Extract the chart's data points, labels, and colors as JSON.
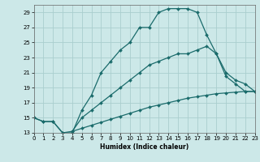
{
  "xlabel": "Humidex (Indice chaleur)",
  "bg_color": "#cce8e8",
  "grid_color": "#aacece",
  "line_color": "#1a6b6b",
  "line1_x": [
    0,
    1,
    2,
    3,
    4,
    5,
    6,
    7,
    8,
    9,
    10,
    11,
    12,
    13,
    14,
    15,
    16,
    17,
    18,
    19,
    20,
    21,
    22,
    23
  ],
  "line1_y": [
    15,
    14.5,
    14.5,
    13,
    13,
    16,
    18,
    21,
    22.5,
    24,
    25,
    27,
    27,
    29,
    29.5,
    29.5,
    29.5,
    29,
    26,
    23.5,
    20.5,
    19.5,
    18.5,
    18.5
  ],
  "line2_x": [
    0,
    1,
    2,
    3,
    4,
    5,
    6,
    7,
    8,
    9,
    10,
    11,
    12,
    13,
    14,
    15,
    16,
    17,
    18,
    19,
    20,
    21,
    22,
    23
  ],
  "line2_y": [
    15,
    14.5,
    14.5,
    13,
    13.2,
    15.0,
    16.0,
    17.0,
    18.0,
    19.0,
    20.0,
    21.0,
    22.0,
    22.5,
    23.0,
    23.5,
    23.5,
    24.0,
    24.5,
    23.5,
    21.0,
    20.0,
    19.5,
    18.5
  ],
  "line3_x": [
    4,
    5,
    6,
    7,
    8,
    9,
    10,
    11,
    12,
    13,
    14,
    15,
    16,
    17,
    18,
    19,
    20,
    21,
    22,
    23
  ],
  "line3_y": [
    13.2,
    13.6,
    14.0,
    14.4,
    14.8,
    15.2,
    15.6,
    16.0,
    16.4,
    16.7,
    17.0,
    17.3,
    17.6,
    17.8,
    18.0,
    18.2,
    18.3,
    18.4,
    18.5,
    18.5
  ],
  "xlim": [
    0,
    23
  ],
  "ylim": [
    13,
    30
  ],
  "yticks": [
    13,
    15,
    17,
    19,
    21,
    23,
    25,
    27,
    29
  ],
  "xticks": [
    0,
    1,
    2,
    3,
    4,
    5,
    6,
    7,
    8,
    9,
    10,
    11,
    12,
    13,
    14,
    15,
    16,
    17,
    18,
    19,
    20,
    21,
    22,
    23
  ]
}
